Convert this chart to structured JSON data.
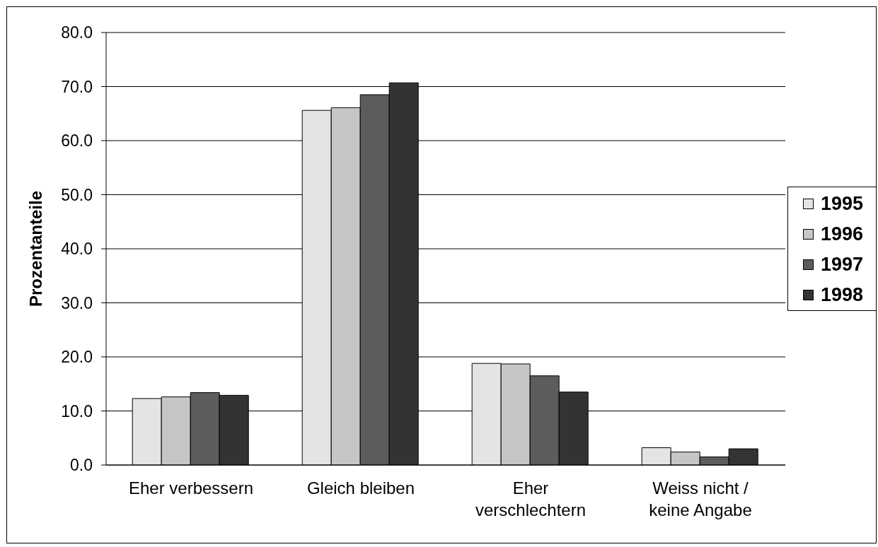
{
  "chart_data": {
    "type": "bar",
    "ylabel": "Prozentanteile",
    "categories": [
      "Eher verbessern",
      "Gleich bleiben",
      "Eher verschlechtern",
      "Weiss nicht / keine Angabe"
    ],
    "series": [
      {
        "name": "1995",
        "color": "#e4e4e4",
        "values": [
          12.3,
          65.6,
          18.8,
          3.2
        ]
      },
      {
        "name": "1996",
        "color": "#c6c6c6",
        "values": [
          12.6,
          66.1,
          18.7,
          2.4
        ]
      },
      {
        "name": "1997",
        "color": "#5c5c5c",
        "values": [
          13.4,
          68.5,
          16.5,
          1.5
        ]
      },
      {
        "name": "1998",
        "color": "#333333",
        "values": [
          12.9,
          70.7,
          13.5,
          3.0
        ]
      }
    ],
    "ylim": [
      0,
      80
    ],
    "yticks": [
      {
        "value": 0,
        "label": "0.0"
      },
      {
        "value": 10,
        "label": "10.0"
      },
      {
        "value": 20,
        "label": "20.0"
      },
      {
        "value": 30,
        "label": "30.0"
      },
      {
        "value": 40,
        "label": "40.0"
      },
      {
        "value": 50,
        "label": "50.0"
      },
      {
        "value": 60,
        "label": "60.0"
      },
      {
        "value": 70,
        "label": "70.0"
      },
      {
        "value": 80,
        "label": "80.0"
      }
    ],
    "grid": "y",
    "legend": "right"
  }
}
